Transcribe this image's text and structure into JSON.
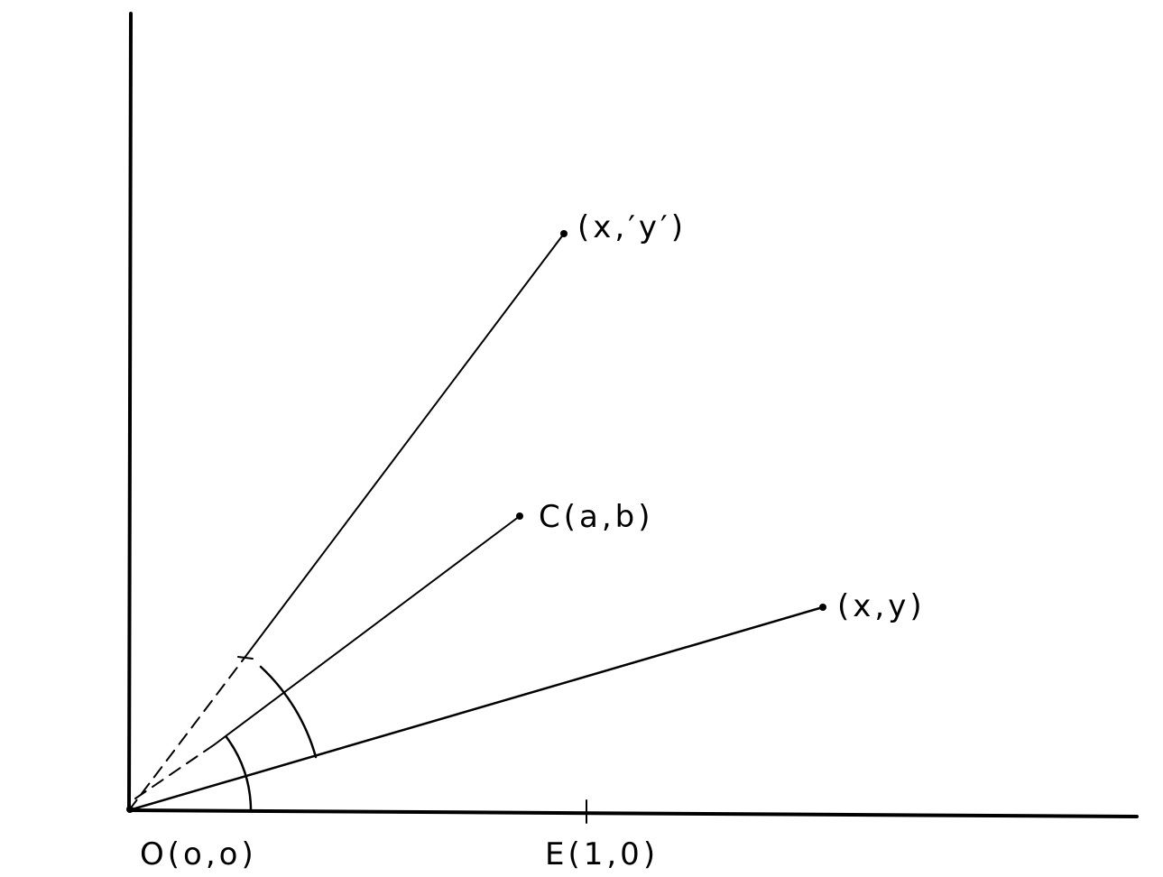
{
  "diagram": {
    "labels": {
      "origin": "O(o,o)",
      "unit_point": "E(1,0)",
      "point_c": "C(a,b)",
      "point_xy": "(x,y)",
      "point_xy_prime": "(x,′y′)"
    },
    "colors": {
      "ink": "#000000",
      "background": "#ffffff"
    }
  }
}
